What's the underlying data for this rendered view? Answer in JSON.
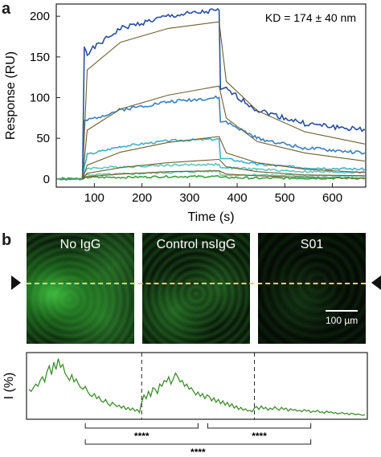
{
  "panel_a": {
    "letter": "a"
  },
  "panel_b": {
    "letter": "b",
    "images": [
      {
        "label": "No IgG"
      },
      {
        "label": "Control nsIgG"
      },
      {
        "label": "S01"
      }
    ],
    "scale_bar_label": "100 µm",
    "profile_ylabel": "I (%)",
    "significance": [
      "****",
      "****",
      "****"
    ]
  },
  "colors": {
    "fit": "#6b6030",
    "marker": "#e8d84a",
    "profile": "#3e8e2e",
    "series": [
      "#2a4fa0",
      "#3a7fc0",
      "#3fb0c8",
      "#5ac8c0",
      "#70c8a0",
      "#3aa040"
    ]
  },
  "chart_data": {
    "type": "line",
    "annotation": "KD = 174 ± 40 nm",
    "xlabel": "Time (s)",
    "ylabel": "Response (RU)",
    "xlim": [
      20,
      670
    ],
    "ylim": [
      -10,
      215
    ],
    "xticks": [
      100,
      200,
      300,
      400,
      500,
      600
    ],
    "yticks": [
      0,
      50,
      100,
      150,
      200
    ],
    "legend": "none",
    "grid": false,
    "injection_start": 75,
    "injection_end": 362,
    "sensorgrams": [
      {
        "color": "#2a4fa0",
        "plateau": 163,
        "association": [
          155,
          185,
          200,
          207
        ],
        "dissociation": [
          110,
          85,
          68,
          60
        ]
      },
      {
        "color": "#3a7fc0",
        "plateau": 70,
        "association": [
          72,
          85,
          95,
          100
        ],
        "dissociation": [
          70,
          50,
          38,
          32
        ]
      },
      {
        "color": "#3fb0c8",
        "plateau": 15,
        "association": [
          30,
          40,
          47,
          49
        ],
        "dissociation": [
          25,
          18,
          14,
          12
        ]
      },
      {
        "color": "#5ac8c0",
        "plateau": 8,
        "association": [
          13,
          15,
          17,
          18
        ],
        "dissociation": [
          14,
          12,
          9,
          8
        ]
      },
      {
        "color": "#70c8a0",
        "plateau": 5,
        "association": [
          5,
          6,
          8,
          10
        ],
        "dissociation": [
          5,
          5,
          4,
          3
        ]
      },
      {
        "color": "#3aa040",
        "plateau": 1,
        "association": [
          2,
          2,
          3,
          3
        ],
        "dissociation": [
          2,
          1,
          1,
          1
        ]
      }
    ],
    "fits": [
      {
        "association": [
          134,
          168,
          185,
          193
        ],
        "dissociation": [
          120,
          84,
          58,
          43
        ]
      },
      {
        "association": [
          60,
          86,
          103,
          114
        ],
        "dissociation": [
          75,
          46,
          32,
          22
        ]
      },
      {
        "association": [
          17,
          33,
          45,
          52
        ],
        "dissociation": [
          32,
          20,
          12,
          8
        ]
      },
      {
        "association": [
          7,
          14,
          20,
          24
        ],
        "dissociation": [
          15,
          9,
          5,
          4
        ]
      },
      {
        "association": [
          3,
          6,
          9,
          10
        ],
        "dissociation": [
          6,
          4,
          2,
          1
        ]
      }
    ]
  },
  "profile_data": {
    "type": "line",
    "values": [
      38,
      35,
      40,
      45,
      42,
      50,
      55,
      48,
      62,
      70,
      58,
      75,
      65,
      80,
      68,
      72,
      60,
      55,
      50,
      58,
      48,
      52,
      45,
      40,
      38,
      42,
      35,
      30,
      28,
      32,
      25,
      28,
      22,
      20,
      24,
      18,
      15,
      20,
      17,
      14,
      16,
      12,
      15,
      10,
      13,
      9,
      12,
      8,
      10,
      6,
      20,
      30,
      25,
      35,
      28,
      40,
      38,
      32,
      45,
      42,
      50,
      48,
      55,
      45,
      52,
      60,
      55,
      48,
      50,
      42,
      45,
      38,
      40,
      35,
      30,
      34,
      28,
      32,
      25,
      30,
      28,
      22,
      26,
      20,
      24,
      18,
      22,
      16,
      20,
      14,
      18,
      12,
      15,
      10,
      13,
      9,
      11,
      8,
      9,
      7,
      12,
      14,
      10,
      15,
      11,
      13,
      9,
      12,
      10,
      14,
      11,
      9,
      13,
      10,
      12,
      8,
      11,
      9,
      10,
      8,
      9,
      7,
      10,
      8,
      9,
      6,
      8,
      7,
      9,
      6,
      7,
      5,
      8,
      6,
      7,
      5,
      6,
      4,
      5,
      6,
      4,
      5,
      3,
      5,
      4,
      3,
      4,
      3,
      2,
      3
    ],
    "dividers_at": [
      50,
      100
    ]
  }
}
